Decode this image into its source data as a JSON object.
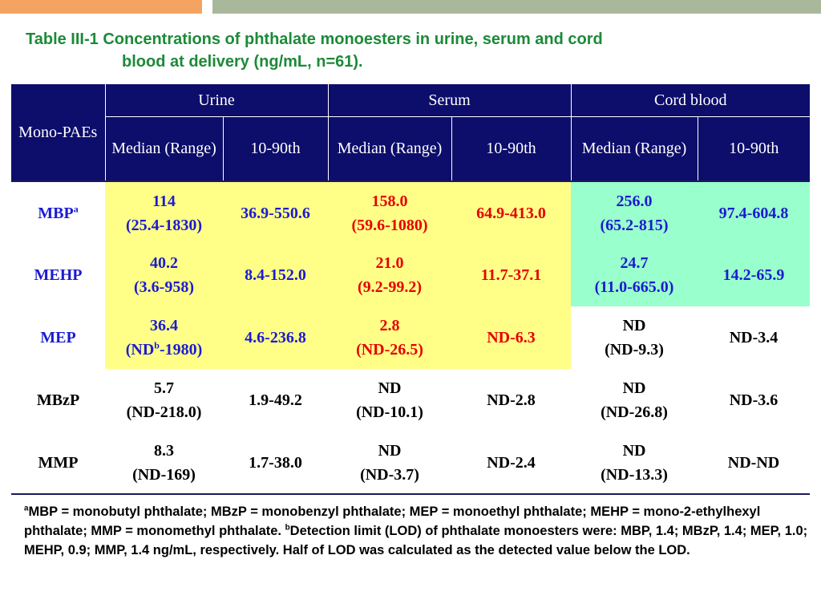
{
  "title": {
    "line1": "Table III-1 Concentrations of phthalate monoesters in urine, serum and cord",
    "line2": "blood at delivery (ng/mL, n=61)."
  },
  "table": {
    "row_header": "Mono-PAEs",
    "groups": [
      "Urine",
      "Serum",
      "Cord blood"
    ],
    "subheaders": {
      "median": "Median (Range)",
      "percentile": "10-90th"
    },
    "rows": [
      {
        "name": "MBP",
        "name_sup": "a",
        "urine_median": "114",
        "urine_range": "(25.4-1830)",
        "urine_p": "36.9-550.6",
        "serum_median": "158.0",
        "serum_range": "(59.6-1080)",
        "serum_p": "64.9-413.0",
        "cord_median": "256.0",
        "cord_range": "(65.2-815)",
        "cord_p": "97.4-604.8"
      },
      {
        "name": "MEHP",
        "urine_median": "40.2",
        "urine_range": "(3.6-958)",
        "urine_p": "8.4-152.0",
        "serum_median": "21.0",
        "serum_range": "(9.2-99.2)",
        "serum_p": "11.7-37.1",
        "cord_median": "24.7",
        "cord_range": "(11.0-665.0)",
        "cord_p": "14.2-65.9"
      },
      {
        "name": "MEP",
        "urine_median": "36.4",
        "urine_range_pre": "(ND",
        "urine_range_sup": "b",
        "urine_range_post": "-1980)",
        "urine_p": "4.6-236.8",
        "serum_median": "2.8",
        "serum_range": "(ND-26.5)",
        "serum_p": "ND-6.3",
        "cord_median": "ND",
        "cord_range": "(ND-9.3)",
        "cord_p": "ND-3.4"
      },
      {
        "name": "MBzP",
        "urine_median": "5.7",
        "urine_range": "(ND-218.0)",
        "urine_p": "1.9-49.2",
        "serum_median": "ND",
        "serum_range": "(ND-10.1)",
        "serum_p": "ND-2.8",
        "cord_median": "ND",
        "cord_range": "(ND-26.8)",
        "cord_p": "ND-3.6"
      },
      {
        "name": "MMP",
        "urine_median": "8.3",
        "urine_range": "(ND-169)",
        "urine_p": "1.7-38.0",
        "serum_median": "ND",
        "serum_range": "(ND-3.7)",
        "serum_p": "ND-2.4",
        "cord_median": "ND",
        "cord_range": "(ND-13.3)",
        "cord_p": "ND-ND"
      }
    ]
  },
  "footnote": {
    "sup_a": "a",
    "text_a": "MBP = monobutyl phthalate; MBzP = monobenzyl phthalate; MEP = monoethyl phthalate; MEHP = mono-2-ethylhexyl phthalate; MMP = monomethyl phthalate. ",
    "sup_b": "b",
    "text_b": "Detection limit (LOD) of phthalate monoesters were: MBP, 1.4; MBzP, 1.4; MEP, 1.0; MEHP, 0.9; MMP, 1.4 ng/mL, respectively. Half of LOD was calculated as the detected value below the LOD."
  },
  "colors": {
    "title": "#1c8a38",
    "header_bg": "#0d0d6b",
    "urine_serum_highlight": "#ffff88",
    "cord_highlight": "#99ffcc",
    "urine_text": "#1b1bd0",
    "serum_text": "#e60000"
  }
}
